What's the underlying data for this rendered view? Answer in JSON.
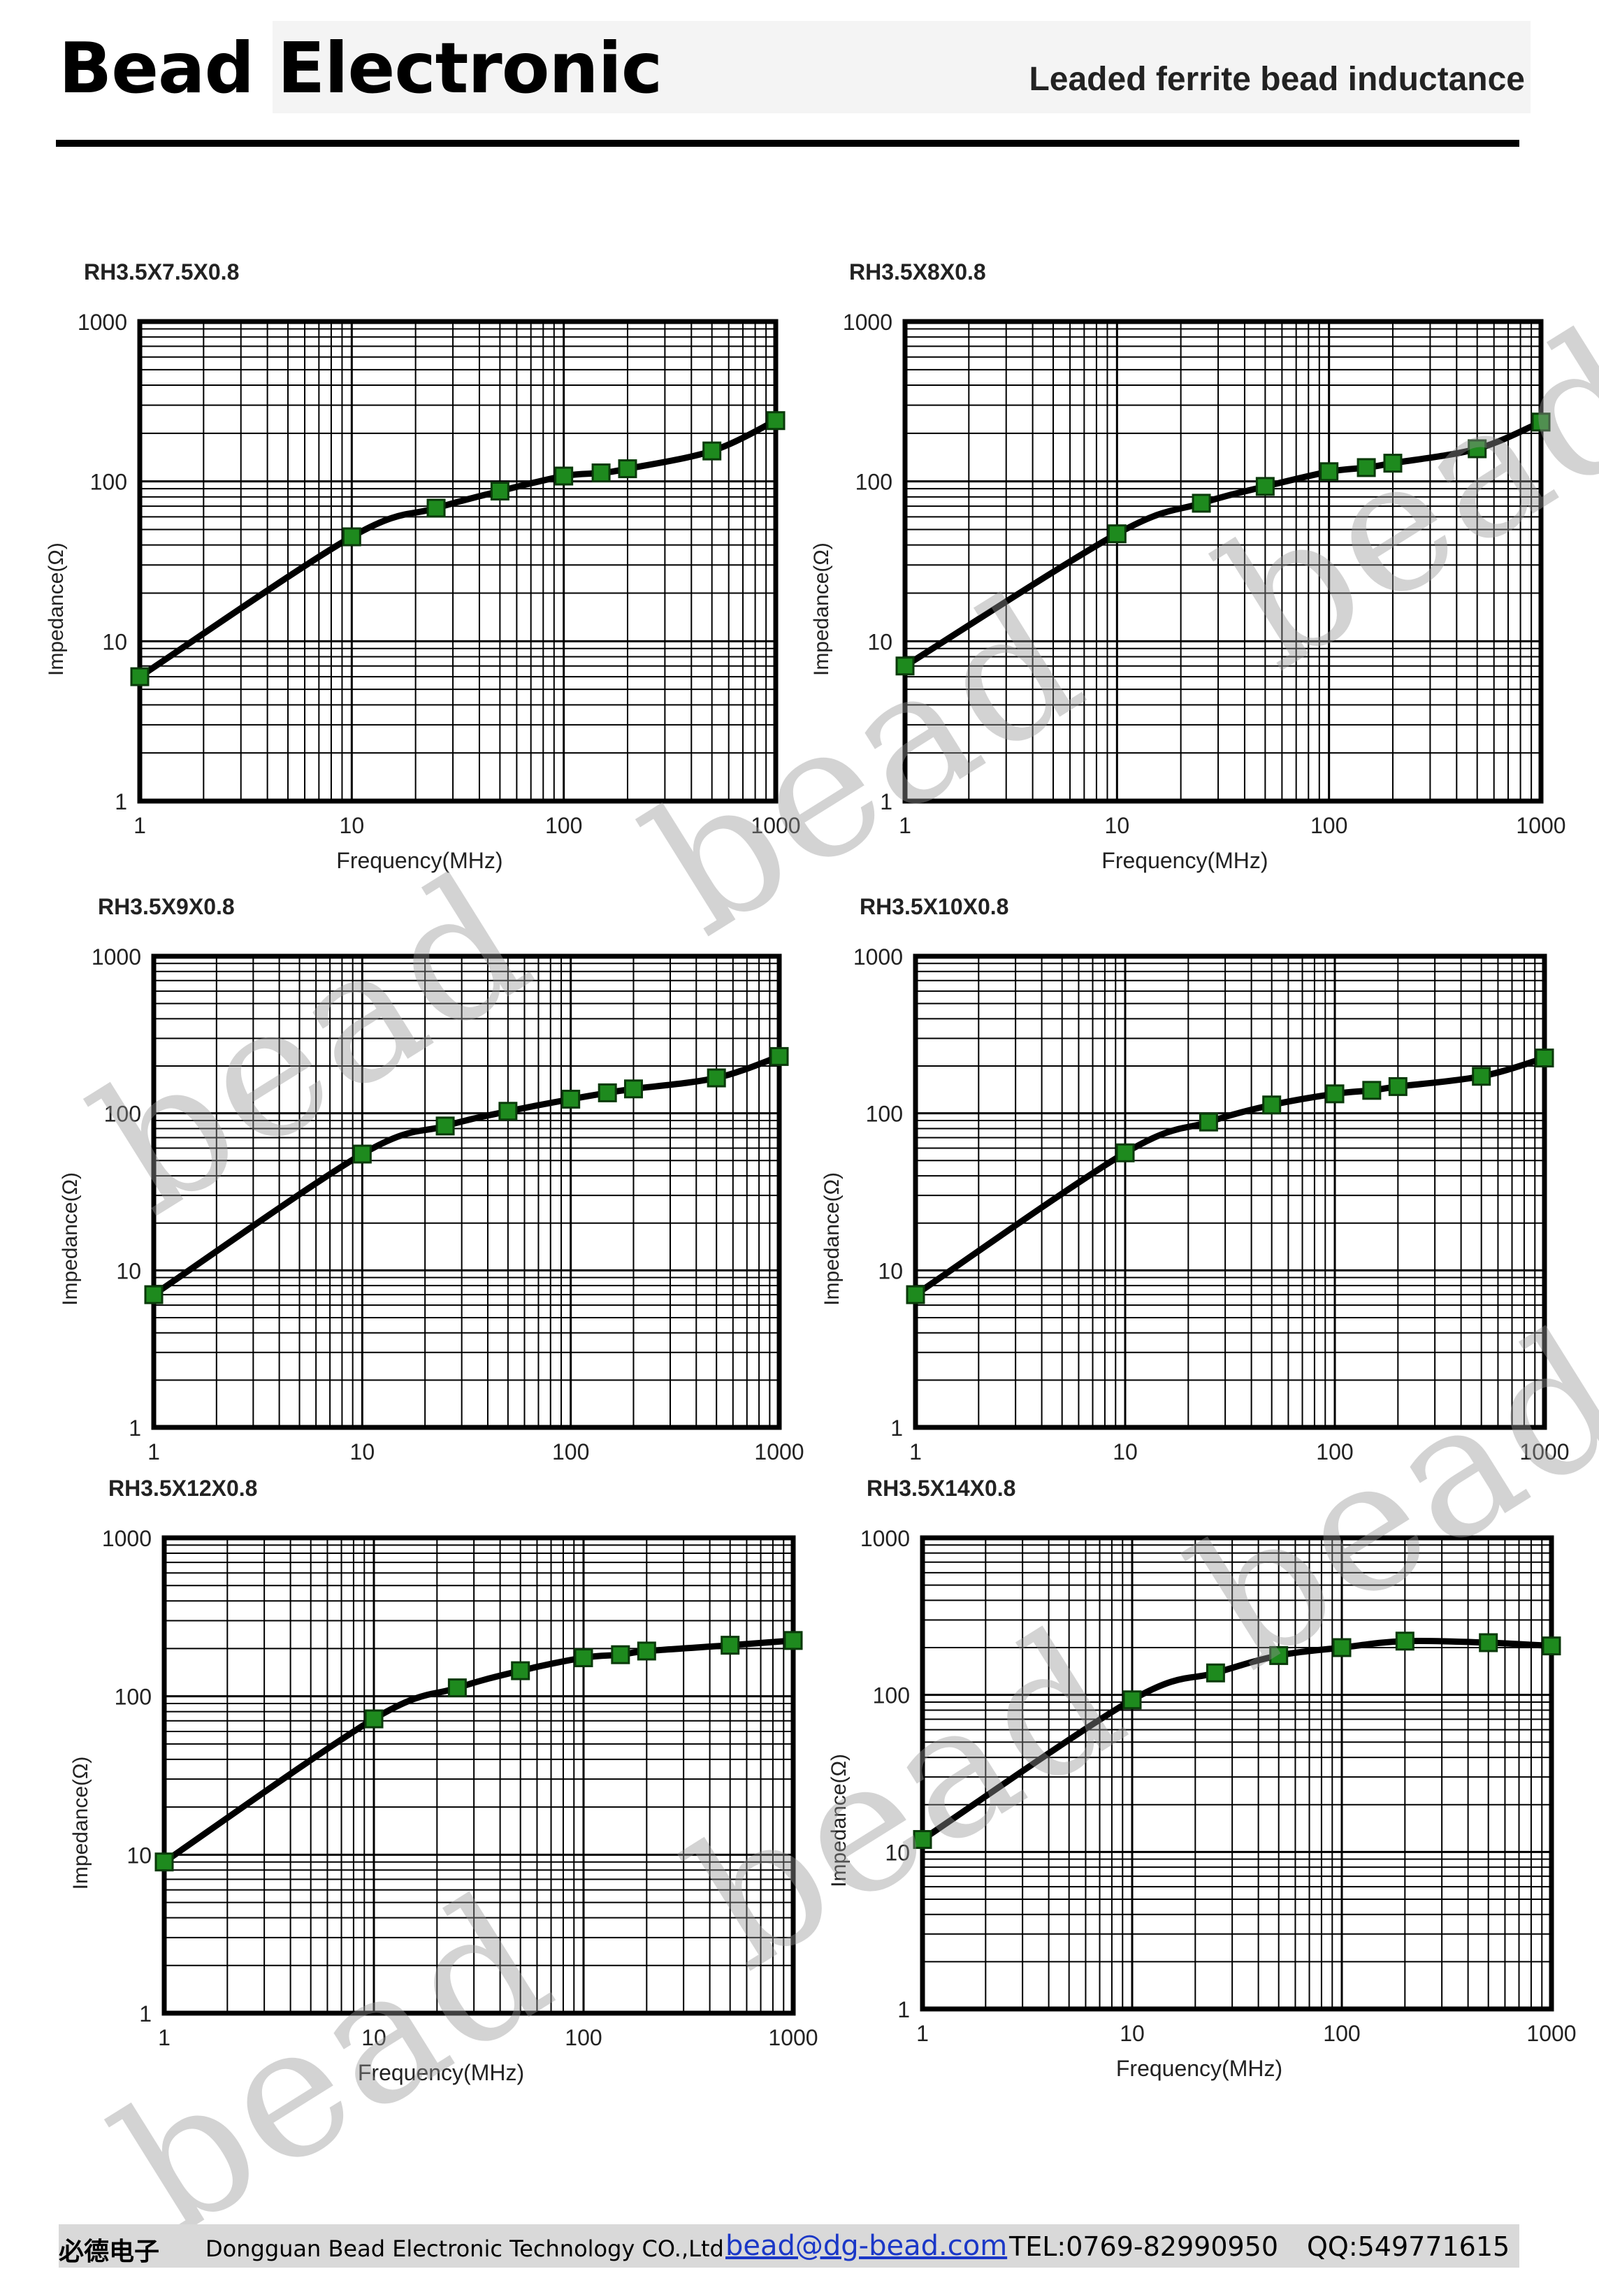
{
  "header": {
    "brand": "Bead Electronic",
    "subtitle": "Leaded ferrite bead inductance"
  },
  "watermark_text": "bead",
  "footer": {
    "company_cn": "必德电子",
    "company_en": "Dongguan Bead Electronic Technology CO.,Ltd",
    "email": "bead@dg-bead.com",
    "tel": "TEL:0769-82990950",
    "qq": "QQ:549771615"
  },
  "colors": {
    "marker": "#1e8a1e",
    "line": "#000000",
    "grid": "#000000",
    "watermark": "#969696"
  },
  "chart_data": [
    {
      "type": "line",
      "title": "RH3.5X7.5X0.8",
      "xlabel": "Frequency(MHz)",
      "ylabel": "Impedance(Ω)",
      "xscale": "log",
      "yscale": "log",
      "xlim": [
        1,
        1000
      ],
      "ylim": [
        1,
        1000
      ],
      "xticks": [
        "1",
        "10",
        "100",
        "1000"
      ],
      "yticks": [
        "1",
        "10",
        "100",
        "1000"
      ],
      "grid": true,
      "x": [
        1,
        10,
        25,
        50,
        100,
        150,
        200,
        500,
        1000
      ],
      "y": [
        6,
        45,
        68,
        87,
        108,
        113,
        120,
        155,
        240
      ]
    },
    {
      "type": "line",
      "title": "RH3.5X8X0.8",
      "xlabel": "Frequency(MHz)",
      "ylabel": "Impedance(Ω)",
      "xscale": "log",
      "yscale": "log",
      "xlim": [
        1,
        1000
      ],
      "ylim": [
        1,
        1000
      ],
      "xticks": [
        "1",
        "10",
        "100",
        "1000"
      ],
      "yticks": [
        "1",
        "10",
        "100",
        "1000"
      ],
      "grid": true,
      "x": [
        1,
        10,
        25,
        50,
        100,
        150,
        200,
        500,
        1000
      ],
      "y": [
        7,
        47,
        73,
        93,
        115,
        122,
        130,
        160,
        235
      ]
    },
    {
      "type": "line",
      "title": "RH3.5X9X0.8",
      "xlabel": "",
      "ylabel": "Impedance(Ω)",
      "xscale": "log",
      "yscale": "log",
      "xlim": [
        1,
        1000
      ],
      "ylim": [
        1,
        1000
      ],
      "xticks": [
        "1",
        "10",
        "100",
        "1000"
      ],
      "yticks": [
        "1",
        "10",
        "100",
        "1000"
      ],
      "grid": true,
      "x": [
        1,
        10,
        25,
        50,
        100,
        150,
        200,
        500,
        1000
      ],
      "y": [
        7,
        55,
        83,
        103,
        123,
        135,
        143,
        168,
        230
      ]
    },
    {
      "type": "line",
      "title": "RH3.5X10X0.8",
      "xlabel": "",
      "ylabel": "Impedance(Ω)",
      "xscale": "log",
      "yscale": "log",
      "xlim": [
        1,
        1000
      ],
      "ylim": [
        1,
        1000
      ],
      "xticks": [
        "1",
        "10",
        "100",
        "1000"
      ],
      "yticks": [
        "1",
        "10",
        "100",
        "1000"
      ],
      "grid": true,
      "x": [
        1,
        10,
        25,
        50,
        100,
        150,
        200,
        500,
        1000
      ],
      "y": [
        7,
        56,
        88,
        113,
        133,
        140,
        148,
        172,
        225
      ]
    },
    {
      "type": "line",
      "title": "RH3.5X12X0.8",
      "xlabel": "Frequency(MHz)",
      "ylabel": "Impedance(Ω)",
      "xscale": "log",
      "yscale": "log",
      "xlim": [
        1,
        1000
      ],
      "ylim": [
        1,
        1000
      ],
      "xticks": [
        "1",
        "10",
        "100",
        "1000"
      ],
      "yticks": [
        "1",
        "10",
        "100",
        "1000"
      ],
      "grid": true,
      "x": [
        1,
        10,
        25,
        50,
        100,
        150,
        200,
        500,
        1000
      ],
      "y": [
        9,
        72,
        113,
        145,
        175,
        183,
        193,
        210,
        225
      ]
    },
    {
      "type": "line",
      "title": "RH3.5X14X0.8",
      "xlabel": "Frequency(MHz)",
      "ylabel": "Impedance(Ω)",
      "xscale": "log",
      "yscale": "log",
      "xlim": [
        1,
        1000
      ],
      "ylim": [
        1,
        1000
      ],
      "xticks": [
        "1",
        "10",
        "100",
        "1000"
      ],
      "yticks": [
        "1",
        "10",
        "100",
        "1000"
      ],
      "grid": true,
      "x": [
        1,
        10,
        25,
        50,
        100,
        200,
        500,
        1000
      ],
      "y": [
        12,
        93,
        138,
        178,
        200,
        220,
        215,
        205
      ]
    }
  ]
}
